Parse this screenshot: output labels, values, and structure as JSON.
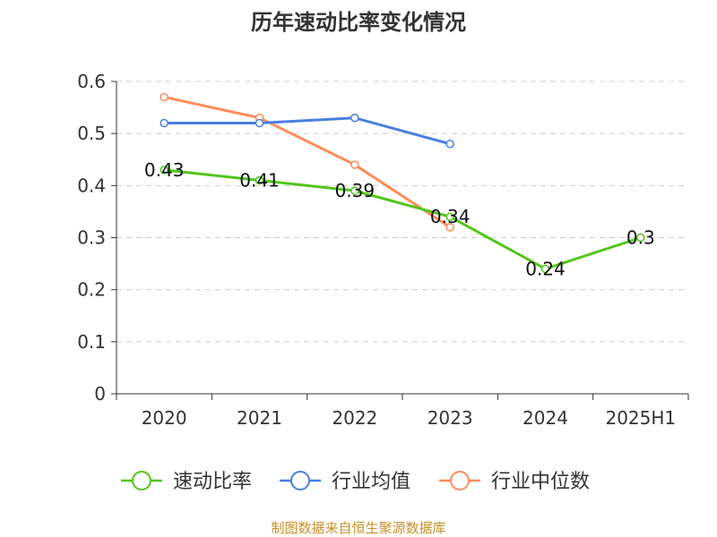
{
  "chart_data": {
    "type": "line",
    "title": "历年速动比率变化情况",
    "categories": [
      "2020",
      "2021",
      "2022",
      "2023",
      "2024",
      "2025H1"
    ],
    "ylim": [
      0,
      0.6
    ],
    "yticks": [
      "0",
      "0.1",
      "0.2",
      "0.3",
      "0.4",
      "0.5",
      "0.6"
    ],
    "grid": true,
    "legend_position": "bottom",
    "series": [
      {
        "name": "速动比率",
        "color": "#52c41a",
        "values": [
          0.43,
          0.41,
          0.39,
          0.34,
          0.24,
          0.3
        ],
        "labels": [
          "0.43",
          "0.41",
          "0.39",
          "0.34",
          "0.24",
          "0.3"
        ]
      },
      {
        "name": "行业均值",
        "color": "#4a7ee0",
        "values": [
          0.52,
          0.52,
          0.53,
          0.48,
          null,
          null
        ]
      },
      {
        "name": "行业中位数",
        "color": "#ff8c5a",
        "values": [
          0.57,
          0.53,
          0.44,
          0.32,
          null,
          null
        ]
      }
    ],
    "source": "制图数据来自恒生聚源数据库",
    "source_color": "#c8902a"
  }
}
